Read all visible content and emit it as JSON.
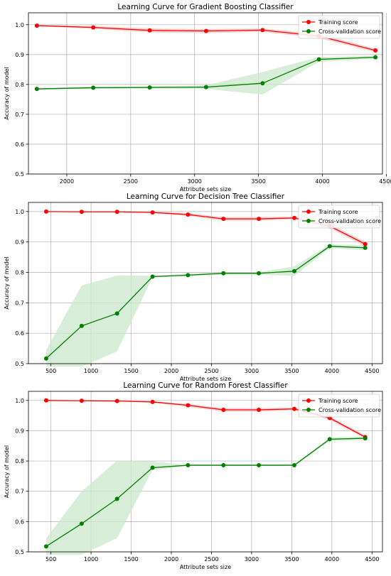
{
  "chart_data": [
    {
      "type": "line",
      "title": "Learning Curve for Gradient Boosting Classifier",
      "xlabel": "Attribute sets size",
      "ylabel": "Accuracy of model",
      "xlim": [
        1700,
        4470
      ],
      "ylim": [
        0.5,
        1.04
      ],
      "xticks": [
        2000,
        2500,
        3000,
        3500,
        4000,
        4500
      ],
      "yticks": [
        0.5,
        0.6,
        0.7,
        0.8,
        0.9,
        1.0
      ],
      "grid": true,
      "legend": "top-right",
      "x": [
        1766,
        2207,
        2649,
        3090,
        3532,
        3973,
        4415
      ],
      "series": [
        {
          "name": "Training score",
          "color": "#ff0000",
          "fill": "#f4c6c6",
          "values": [
            0.997,
            0.991,
            0.981,
            0.979,
            0.982,
            0.962,
            0.914
          ],
          "lower": [
            0.995,
            0.986,
            0.974,
            0.972,
            0.976,
            0.955,
            0.908
          ],
          "upper": [
            0.999,
            0.996,
            0.988,
            0.986,
            0.988,
            0.969,
            0.92
          ]
        },
        {
          "name": "Cross-validation score",
          "color": "#008000",
          "fill": "#cce8cc",
          "values": [
            0.785,
            0.789,
            0.79,
            0.791,
            0.804,
            0.884,
            0.891
          ],
          "lower": [
            0.783,
            0.785,
            0.786,
            0.785,
            0.766,
            0.876,
            0.886
          ],
          "upper": [
            0.787,
            0.793,
            0.794,
            0.797,
            0.842,
            0.892,
            0.896
          ]
        }
      ]
    },
    {
      "type": "line",
      "title": "Learning Curve for Decision Tree Classifier",
      "xlabel": "Attribute sets size",
      "ylabel": "Accuracy of model",
      "xlim": [
        220,
        4630
      ],
      "ylim": [
        0.5,
        1.03
      ],
      "xticks": [
        500,
        1000,
        1500,
        2000,
        2500,
        3000,
        3500,
        4000,
        4500
      ],
      "yticks": [
        0.5,
        0.6,
        0.7,
        0.8,
        0.9,
        1.0
      ],
      "grid": true,
      "legend": "top-right",
      "x": [
        441,
        883,
        1324,
        1766,
        2207,
        2649,
        3090,
        3532,
        3973,
        4415
      ],
      "series": [
        {
          "name": "Training score",
          "color": "#ff0000",
          "fill": "#f4c6c6",
          "values": [
            1.0,
            0.999,
            0.999,
            0.997,
            0.99,
            0.976,
            0.976,
            0.979,
            0.952,
            0.893
          ],
          "lower": [
            1.0,
            0.998,
            0.998,
            0.995,
            0.985,
            0.97,
            0.97,
            0.975,
            0.945,
            0.885
          ],
          "upper": [
            1.0,
            1.0,
            1.0,
            0.999,
            0.995,
            0.982,
            0.982,
            0.983,
            0.959,
            0.901
          ]
        },
        {
          "name": "Cross-validation score",
          "color": "#008000",
          "fill": "#cce8cc",
          "values": [
            0.517,
            0.624,
            0.665,
            0.786,
            0.791,
            0.797,
            0.797,
            0.804,
            0.886,
            0.881
          ],
          "lower": [
            0.49,
            0.49,
            0.54,
            0.783,
            0.787,
            0.793,
            0.793,
            0.788,
            0.88,
            0.873
          ],
          "upper": [
            0.545,
            0.757,
            0.79,
            0.789,
            0.795,
            0.801,
            0.801,
            0.82,
            0.892,
            0.889
          ]
        }
      ]
    },
    {
      "type": "line",
      "title": "Learning Curve for Random Forest Classifier",
      "xlabel": "Attribute sets size",
      "ylabel": "Accuracy of model",
      "xlim": [
        220,
        4630
      ],
      "ylim": [
        0.5,
        1.03
      ],
      "xticks": [
        500,
        1000,
        1500,
        2000,
        2500,
        3000,
        3500,
        4000,
        4500
      ],
      "yticks": [
        0.5,
        0.6,
        0.7,
        0.8,
        0.9,
        1.0
      ],
      "grid": true,
      "legend": "top-right",
      "x": [
        441,
        883,
        1324,
        1766,
        2207,
        2649,
        3090,
        3532,
        3973,
        4415
      ],
      "series": [
        {
          "name": "Training score",
          "color": "#ff0000",
          "fill": "#f4c6c6",
          "values": [
            1.0,
            0.999,
            0.998,
            0.995,
            0.984,
            0.969,
            0.969,
            0.972,
            0.942,
            0.879
          ],
          "lower": [
            1.0,
            0.998,
            0.997,
            0.993,
            0.979,
            0.963,
            0.963,
            0.968,
            0.936,
            0.873
          ],
          "upper": [
            1.0,
            1.0,
            0.999,
            0.997,
            0.989,
            0.975,
            0.975,
            0.976,
            0.948,
            0.885
          ]
        },
        {
          "name": "Cross-validation score",
          "color": "#008000",
          "fill": "#cce8cc",
          "values": [
            0.518,
            0.593,
            0.675,
            0.778,
            0.786,
            0.786,
            0.786,
            0.786,
            0.872,
            0.875
          ],
          "lower": [
            0.49,
            0.49,
            0.545,
            0.77,
            0.784,
            0.784,
            0.784,
            0.784,
            0.866,
            0.87
          ],
          "upper": [
            0.545,
            0.7,
            0.802,
            0.798,
            0.788,
            0.788,
            0.788,
            0.788,
            0.878,
            0.88
          ]
        }
      ]
    }
  ]
}
